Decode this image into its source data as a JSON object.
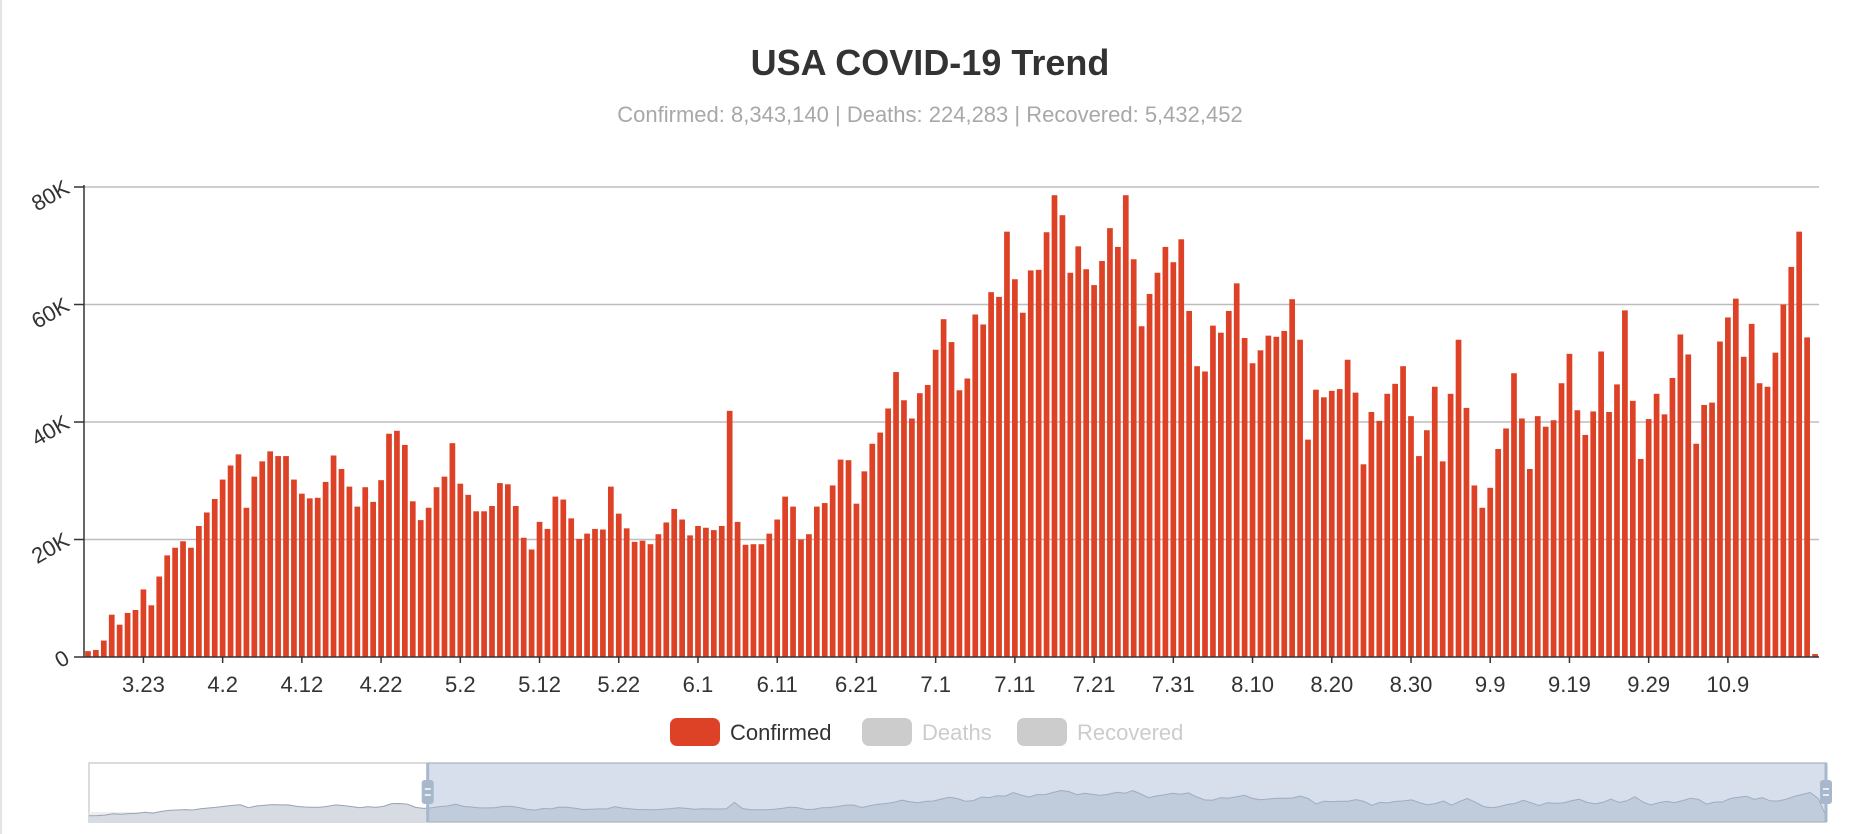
{
  "chart_data": {
    "type": "bar",
    "title": "USA COVID-19 Trend",
    "subtitle": "Confirmed: 8,343,140 | Deaths: 224,283 | Recovered: 5,432,452",
    "ylim": [
      0,
      80000
    ],
    "y_ticks": [
      0,
      20000,
      40000,
      60000,
      80000
    ],
    "y_tick_labels": [
      "0",
      "20K",
      "40K",
      "60K",
      "80K"
    ],
    "x_tick_labels": [
      "3.23",
      "4.2",
      "4.12",
      "4.22",
      "5.2",
      "5.12",
      "5.22",
      "6.1",
      "6.11",
      "6.21",
      "7.1",
      "7.11",
      "7.21",
      "7.31",
      "8.10",
      "8.20",
      "8.30",
      "9.9",
      "9.19",
      "9.29",
      "10.9"
    ],
    "x_tick_first_index": 7,
    "x_tick_step": 10,
    "legend": [
      {
        "name": "Confirmed",
        "color": "#dd4126",
        "active": true
      },
      {
        "name": "Deaths",
        "color": "#cccccc",
        "active": false
      },
      {
        "name": "Recovered",
        "color": "#cccccc",
        "active": false
      }
    ],
    "series": [
      {
        "name": "Confirmed",
        "color": "#dd4126",
        "start_date": "3.16",
        "values": [
          1000,
          1200,
          2800,
          7200,
          5500,
          7500,
          8000,
          11500,
          8800,
          13700,
          17300,
          18600,
          19700,
          18600,
          22300,
          24600,
          26900,
          30200,
          32600,
          34500,
          25400,
          30700,
          33300,
          35000,
          34200,
          34200,
          30200,
          27800,
          27000,
          27100,
          29800,
          34300,
          32000,
          29000,
          25600,
          28900,
          26400,
          30100,
          38000,
          38500,
          36100,
          26500,
          23300,
          25400,
          28900,
          30700,
          36400,
          29500,
          27600,
          24800,
          24800,
          25700,
          29600,
          29400,
          25700,
          20300,
          18300,
          23000,
          21800,
          27300,
          26800,
          23600,
          20100,
          21000,
          21800,
          21700,
          29000,
          24400,
          21900,
          19600,
          19800,
          19200,
          20900,
          22900,
          25200,
          23400,
          20700,
          22300,
          22000,
          21600,
          22300,
          41900,
          23000,
          19100,
          19200,
          19200,
          21000,
          23400,
          27300,
          25600,
          20000,
          20900,
          25600,
          26200,
          29200,
          33600,
          33500,
          26100,
          31600,
          36300,
          38200,
          42300,
          48500,
          43700,
          40600,
          44900,
          46300,
          52300,
          57500,
          53600,
          45400,
          47400,
          58300,
          56600,
          62100,
          61300,
          72400,
          64300,
          58600,
          65800,
          65900,
          72300,
          78600,
          75200,
          65400,
          69900,
          66000,
          63300,
          67400,
          73000,
          69800,
          78600,
          67700,
          56300,
          61800,
          65400,
          69800,
          67200,
          71100,
          58900,
          49500,
          48600,
          56400,
          55200,
          58900,
          63600,
          54300,
          50000,
          52200,
          54700,
          54500,
          55500,
          60900,
          54000,
          37000,
          45500,
          44200,
          45300,
          45600,
          50600,
          45000,
          32800,
          41700,
          40200,
          44800,
          46500,
          49500,
          41000,
          34200,
          38600,
          46000,
          33300,
          44800,
          54000,
          42400,
          29200,
          25400,
          28800,
          35400,
          38900,
          48300,
          40600,
          32000,
          41000,
          39200,
          40300,
          46600,
          51600,
          42000,
          37800,
          41800,
          52000,
          41700,
          46400,
          59000,
          43600,
          33700,
          40500,
          44800,
          41300,
          47500,
          54900,
          51500,
          36300,
          42900,
          43300,
          53700,
          57800,
          61000,
          51100,
          56700,
          46600,
          46000,
          51800,
          60000,
          66400,
          72400,
          54400,
          500
        ]
      },
      {
        "name": "Deaths",
        "color": "#cccccc",
        "values": []
      },
      {
        "name": "Recovered",
        "color": "#cccccc",
        "values": []
      }
    ],
    "data_zoom": {
      "range_percent": [
        19.5,
        100
      ]
    }
  }
}
